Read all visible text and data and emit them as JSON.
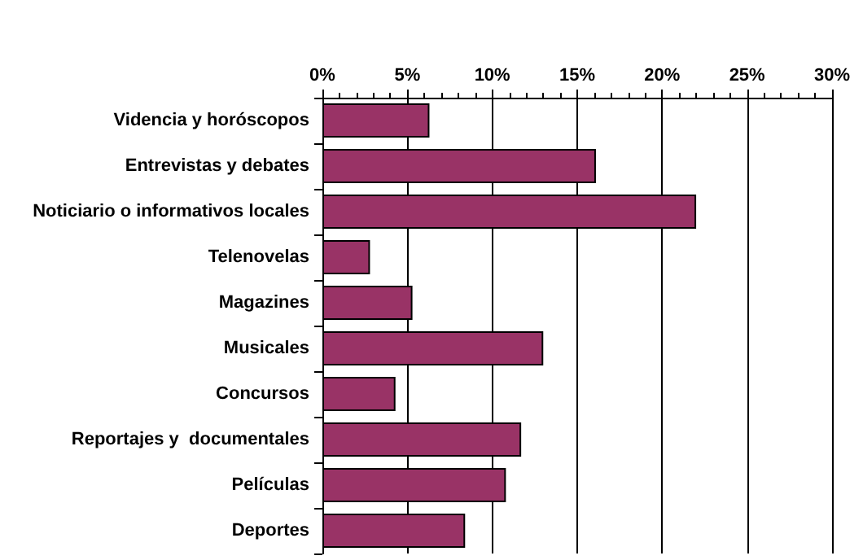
{
  "chart_data": {
    "type": "bar",
    "orientation": "horizontal",
    "categories": [
      "Videncia y horóscopos",
      "Entrevistas y debates",
      "Noticiario o informativos locales",
      "Telenovelas",
      "Magazines",
      "Musicales",
      "Concursos",
      "Reportajes y  documentales",
      "Películas",
      "Deportes"
    ],
    "values": [
      6.3,
      16.1,
      22.0,
      2.8,
      5.3,
      13.0,
      4.3,
      11.7,
      10.8,
      8.4
    ],
    "color": "#993366",
    "xlim": [
      0,
      30
    ],
    "xticks": [
      {
        "value": 0,
        "label": "0%"
      },
      {
        "value": 5,
        "label": "5%"
      },
      {
        "value": 10,
        "label": "10%"
      },
      {
        "value": 15,
        "label": "15%"
      },
      {
        "value": 20,
        "label": "20%"
      },
      {
        "value": 25,
        "label": "25%"
      },
      {
        "value": 30,
        "label": "30%"
      }
    ],
    "grid": "x"
  }
}
